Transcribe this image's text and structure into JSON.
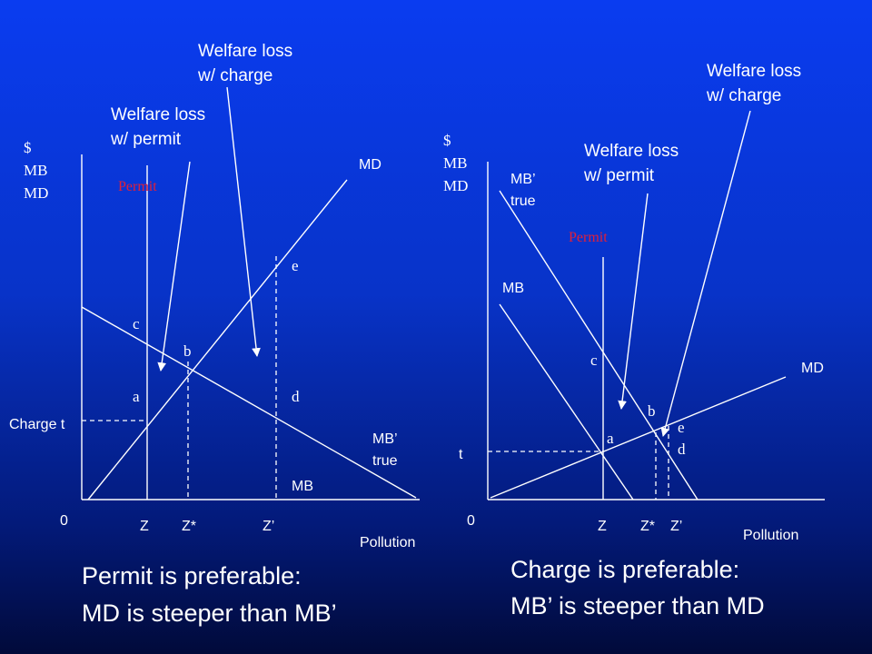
{
  "left": {
    "y_axis": [
      "$",
      "MB",
      "MD"
    ],
    "callout_charge": [
      "Welfare loss",
      "w/ charge"
    ],
    "callout_permit": [
      "Welfare loss",
      "w/ permit"
    ],
    "permit": "Permit",
    "charge": "Charge t",
    "origin": "0",
    "points": {
      "a": "a",
      "b": "b",
      "c": "c",
      "d": "d",
      "e": "e"
    },
    "curves": {
      "md": "MD",
      "mb_true": [
        "MB’",
        "true"
      ],
      "mb": "MB"
    },
    "x_ticks": [
      "Z",
      "Z*",
      "Z’"
    ],
    "x_axis": "Pollution",
    "caption": [
      "Permit is preferable:",
      "MD is steeper than MB’"
    ]
  },
  "right": {
    "y_axis": [
      "$",
      "MB",
      "MD"
    ],
    "callout_charge": [
      "Welfare loss",
      "w/ charge"
    ],
    "callout_permit": [
      "Welfare loss",
      "w/ permit"
    ],
    "permit": "Permit",
    "charge": "t",
    "origin": "0",
    "points": {
      "a": "a",
      "b": "b",
      "c": "c",
      "d": "d",
      "e": "e"
    },
    "curves": {
      "md": "MD",
      "mb_true": [
        "MB’",
        "true"
      ],
      "mb": "MB"
    },
    "x_ticks": [
      "Z",
      "Z*",
      "Z’"
    ],
    "x_axis": "Pollution",
    "caption": [
      "Charge is preferable:",
      "MB’ is steeper than MD"
    ]
  }
}
